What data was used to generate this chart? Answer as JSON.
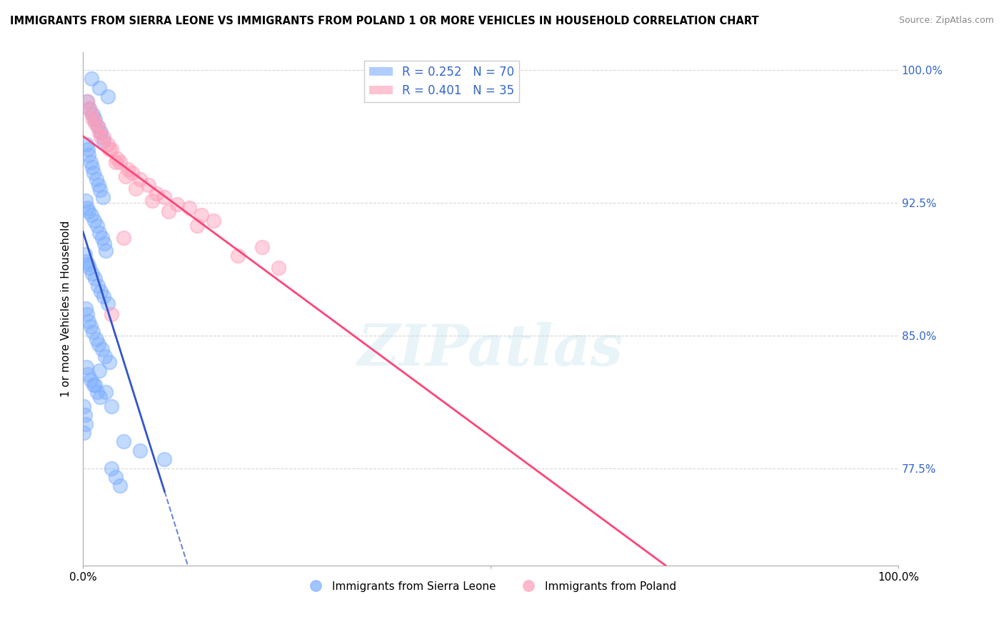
{
  "title": "IMMIGRANTS FROM SIERRA LEONE VS IMMIGRANTS FROM POLAND 1 OR MORE VEHICLES IN HOUSEHOLD CORRELATION CHART",
  "source": "Source: ZipAtlas.com",
  "ylabel": "1 or more Vehicles in Household",
  "ytick_labels": [
    "100.0%",
    "92.5%",
    "85.0%",
    "77.5%"
  ],
  "ytick_values": [
    1.0,
    0.925,
    0.85,
    0.775
  ],
  "sierra_leone_color": "#7aadff",
  "poland_color": "#ff9db8",
  "sierra_leone_trend_color": "#3355cc",
  "poland_trend_color": "#ff4477",
  "background_color": "#ffffff",
  "R_sierra": 0.252,
  "N_sierra": 70,
  "R_poland": 0.401,
  "N_poland": 35,
  "xlim": [
    0.0,
    1.0
  ],
  "ylim": [
    0.72,
    1.01
  ],
  "sierra_leone_x": [
    0.01,
    0.02,
    0.03,
    0.005,
    0.008,
    0.012,
    0.015,
    0.018,
    0.022,
    0.025,
    0.004,
    0.006,
    0.007,
    0.009,
    0.011,
    0.013,
    0.016,
    0.019,
    0.021,
    0.024,
    0.003,
    0.005,
    0.007,
    0.01,
    0.014,
    0.017,
    0.02,
    0.023,
    0.026,
    0.028,
    0.002,
    0.004,
    0.006,
    0.008,
    0.011,
    0.015,
    0.018,
    0.022,
    0.025,
    0.03,
    0.003,
    0.005,
    0.007,
    0.009,
    0.012,
    0.016,
    0.019,
    0.023,
    0.027,
    0.032,
    0.004,
    0.006,
    0.009,
    0.013,
    0.017,
    0.021,
    0.001,
    0.002,
    0.003,
    0.001,
    0.05,
    0.07,
    0.1,
    0.035,
    0.04,
    0.045,
    0.035,
    0.028,
    0.015,
    0.02
  ],
  "sierra_leone_y": [
    0.995,
    0.99,
    0.985,
    0.982,
    0.978,
    0.975,
    0.972,
    0.968,
    0.965,
    0.96,
    0.958,
    0.955,
    0.952,
    0.948,
    0.945,
    0.942,
    0.938,
    0.935,
    0.932,
    0.928,
    0.926,
    0.922,
    0.92,
    0.918,
    0.915,
    0.912,
    0.908,
    0.905,
    0.902,
    0.898,
    0.896,
    0.892,
    0.89,
    0.888,
    0.885,
    0.882,
    0.878,
    0.875,
    0.872,
    0.868,
    0.865,
    0.862,
    0.858,
    0.855,
    0.852,
    0.848,
    0.845,
    0.842,
    0.838,
    0.835,
    0.832,
    0.828,
    0.825,
    0.822,
    0.818,
    0.815,
    0.81,
    0.805,
    0.8,
    0.795,
    0.79,
    0.785,
    0.78,
    0.775,
    0.77,
    0.765,
    0.81,
    0.818,
    0.822,
    0.83
  ],
  "poland_x": [
    0.01,
    0.018,
    0.025,
    0.035,
    0.045,
    0.06,
    0.08,
    0.1,
    0.13,
    0.16,
    0.005,
    0.012,
    0.02,
    0.03,
    0.042,
    0.055,
    0.07,
    0.09,
    0.115,
    0.145,
    0.008,
    0.015,
    0.022,
    0.032,
    0.04,
    0.052,
    0.065,
    0.085,
    0.105,
    0.14,
    0.05,
    0.19,
    0.24,
    0.035,
    0.22
  ],
  "poland_y": [
    0.975,
    0.968,
    0.962,
    0.955,
    0.948,
    0.942,
    0.935,
    0.928,
    0.922,
    0.915,
    0.982,
    0.972,
    0.965,
    0.958,
    0.95,
    0.944,
    0.938,
    0.93,
    0.924,
    0.918,
    0.978,
    0.97,
    0.962,
    0.955,
    0.948,
    0.94,
    0.933,
    0.926,
    0.92,
    0.912,
    0.905,
    0.895,
    0.888,
    0.862,
    0.9
  ]
}
